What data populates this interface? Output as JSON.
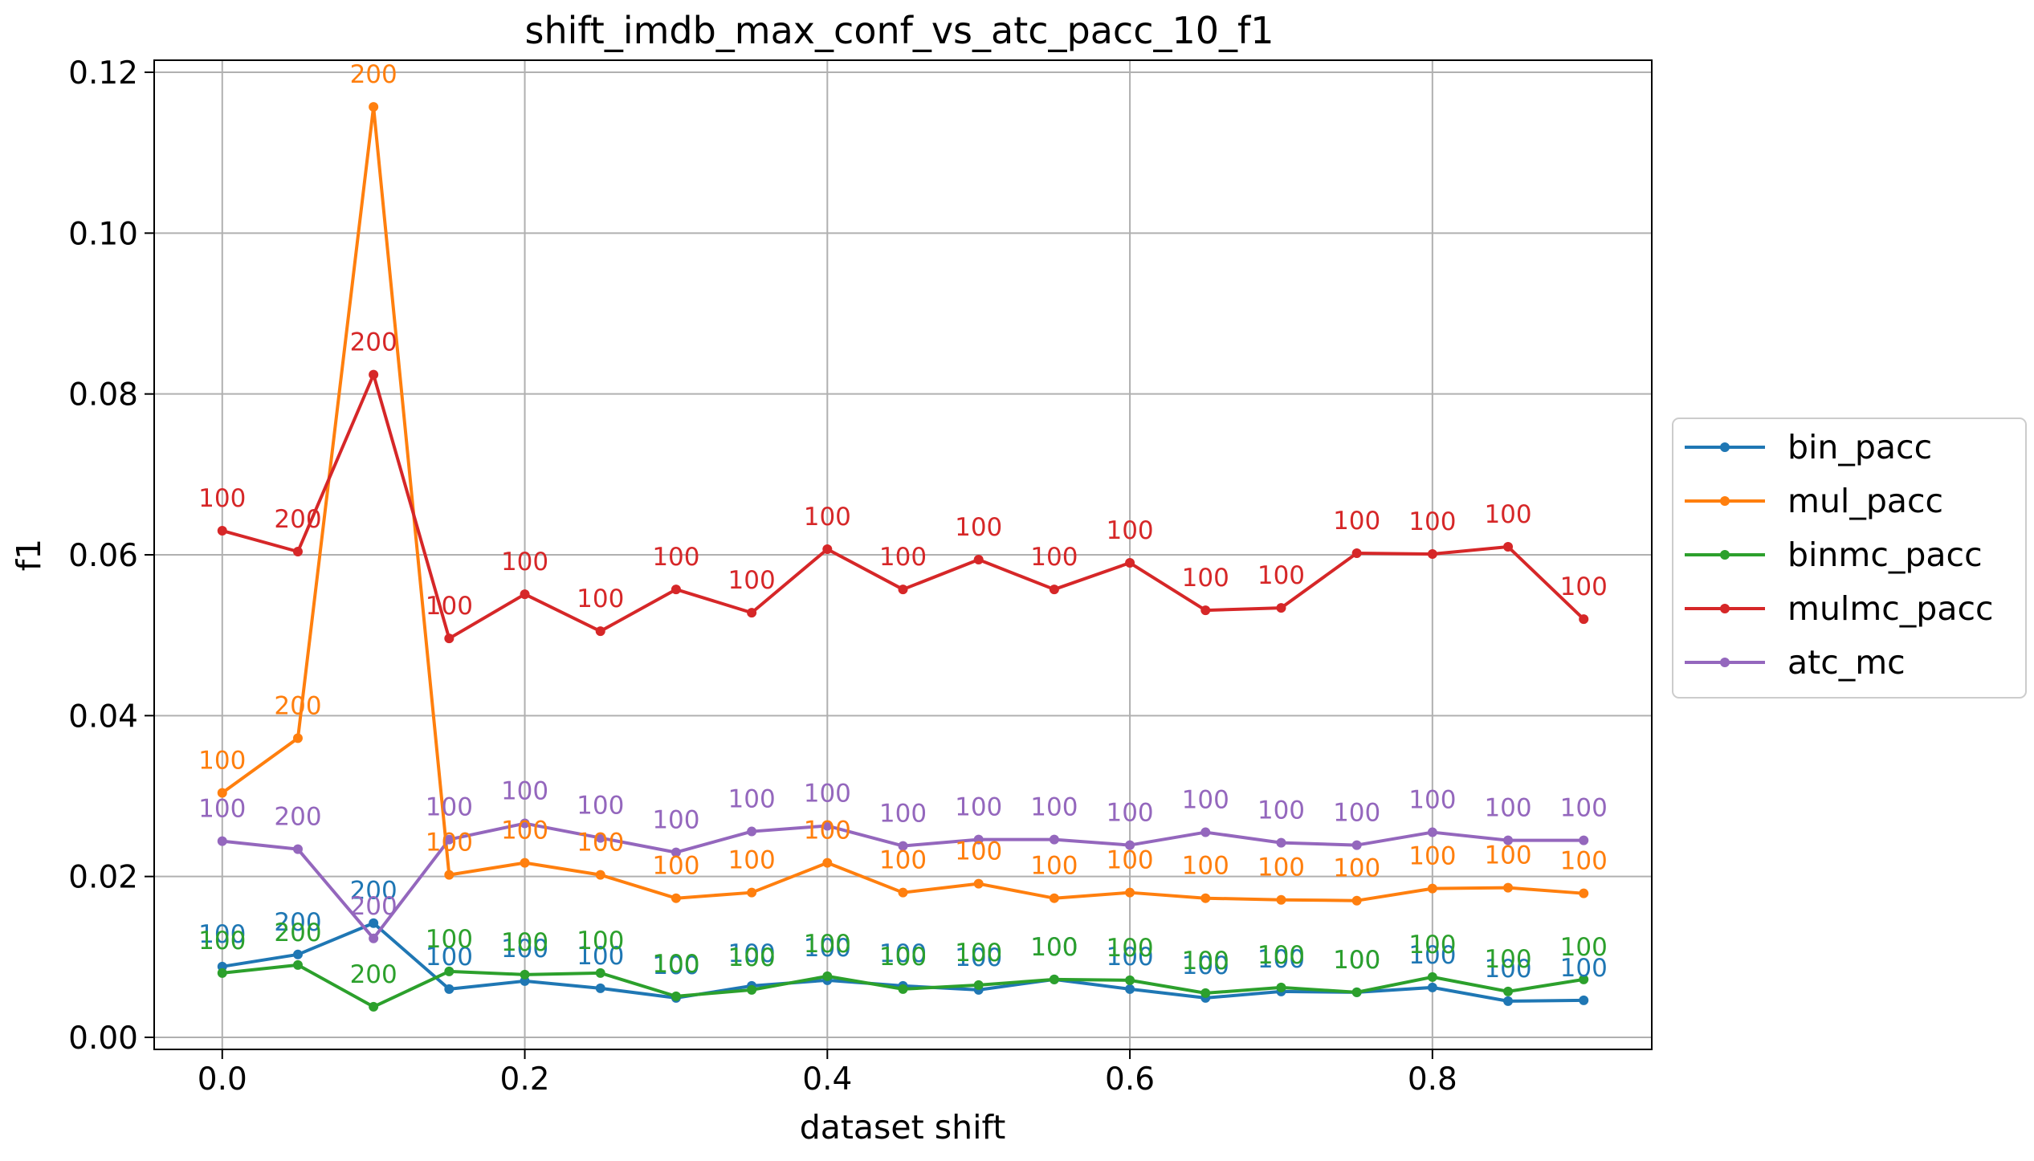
{
  "chart_data": {
    "type": "line",
    "title": "shift_imdb_max_conf_vs_atc_pacc_10_f1",
    "xlabel": "dataset shift",
    "ylabel": "f1",
    "xlim": [
      -0.045,
      0.945
    ],
    "ylim": [
      -0.0015,
      0.1215
    ],
    "xticks": [
      0.0,
      0.2,
      0.4,
      0.6,
      0.8
    ],
    "xtick_labels": [
      "0.0",
      "0.2",
      "0.4",
      "0.6",
      "0.8"
    ],
    "yticks": [
      0.0,
      0.02,
      0.04,
      0.06,
      0.08,
      0.1,
      0.12
    ],
    "ytick_labels": [
      "0.00",
      "0.02",
      "0.04",
      "0.06",
      "0.08",
      "0.10",
      "0.12"
    ],
    "grid": true,
    "legend_position": "outside-right",
    "x": [
      0.0,
      0.05,
      0.1,
      0.15,
      0.2,
      0.25,
      0.3,
      0.35,
      0.4,
      0.45,
      0.5,
      0.55,
      0.6,
      0.65,
      0.7,
      0.75,
      0.8,
      0.85,
      0.9
    ],
    "series": [
      {
        "name": "bin_pacc",
        "color": "#1f77b4",
        "values": [
          0.0088,
          0.0103,
          0.0142,
          0.006,
          0.007,
          0.0061,
          0.0049,
          0.0064,
          0.0071,
          0.0064,
          0.0059,
          0.0072,
          0.006,
          0.0049,
          0.0057,
          0.0056,
          0.0062,
          0.0045,
          0.0046
        ],
        "labels": [
          "100",
          "200",
          "200",
          "100",
          "100",
          "100",
          "100",
          "100",
          "100",
          "100",
          "100",
          "100",
          "100",
          "100",
          "100",
          "100",
          "100",
          "100",
          "100"
        ]
      },
      {
        "name": "mul_pacc",
        "color": "#ff7f0e",
        "values": [
          0.0304,
          0.0372,
          0.1157,
          0.0202,
          0.0217,
          0.0202,
          0.0173,
          0.018,
          0.0217,
          0.018,
          0.0191,
          0.0173,
          0.018,
          0.0173,
          0.0171,
          0.017,
          0.0185,
          0.0186,
          0.0179
        ],
        "labels": [
          "100",
          "200",
          "200",
          "100",
          "100",
          "100",
          "100",
          "100",
          "100",
          "100",
          "100",
          "100",
          "100",
          "100",
          "100",
          "100",
          "100",
          "100",
          "100"
        ]
      },
      {
        "name": "binmc_pacc",
        "color": "#2ca02c",
        "values": [
          0.008,
          0.009,
          0.0038,
          0.0082,
          0.0078,
          0.008,
          0.0051,
          0.0059,
          0.0076,
          0.006,
          0.0065,
          0.0072,
          0.0071,
          0.0055,
          0.0062,
          0.0056,
          0.0075,
          0.0057,
          0.0072
        ],
        "labels": [
          "100",
          "200",
          "200",
          "100",
          "100",
          "100",
          "100",
          "100",
          "100",
          "100",
          "100",
          "100",
          "100",
          "100",
          "100",
          "100",
          "100",
          "100",
          "100"
        ]
      },
      {
        "name": "mulmc_pacc",
        "color": "#d62728",
        "values": [
          0.063,
          0.0604,
          0.0824,
          0.0496,
          0.0551,
          0.0505,
          0.0557,
          0.0528,
          0.0607,
          0.0557,
          0.0594,
          0.0557,
          0.059,
          0.0531,
          0.0534,
          0.0602,
          0.0601,
          0.061,
          0.052
        ],
        "labels": [
          "100",
          "200",
          "200",
          "100",
          "100",
          "100",
          "100",
          "100",
          "100",
          "100",
          "100",
          "100",
          "100",
          "100",
          "100",
          "100",
          "100",
          "100",
          "100"
        ]
      },
      {
        "name": "atc_mc",
        "color": "#9467bd",
        "values": [
          0.0244,
          0.0234,
          0.0123,
          0.0246,
          0.0266,
          0.0248,
          0.023,
          0.0256,
          0.0263,
          0.0238,
          0.0246,
          0.0246,
          0.0239,
          0.0255,
          0.0242,
          0.0239,
          0.0255,
          0.0245,
          0.0245
        ],
        "labels": [
          "100",
          "200",
          "200",
          "100",
          "100",
          "100",
          "100",
          "100",
          "100",
          "100",
          "100",
          "100",
          "100",
          "100",
          "100",
          "100",
          "100",
          "100",
          "100"
        ]
      }
    ]
  }
}
